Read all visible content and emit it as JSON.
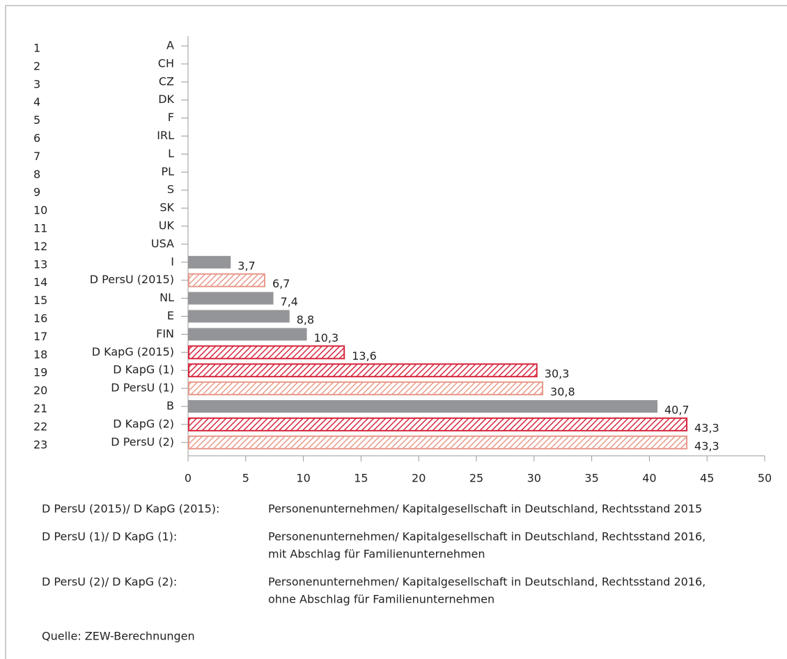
{
  "chart_data": {
    "type": "bar",
    "orientation": "horizontal",
    "ranks": [
      "1",
      "2",
      "3",
      "4",
      "5",
      "6",
      "7",
      "8",
      "9",
      "10",
      "11",
      "12",
      "13",
      "14",
      "15",
      "16",
      "17",
      "18",
      "19",
      "20",
      "21",
      "22",
      "23"
    ],
    "categories": [
      "A",
      "CH",
      "CZ",
      "DK",
      "F",
      "IRL",
      "L",
      "PL",
      "S",
      "SK",
      "UK",
      "USA",
      "I",
      "D PersU (2015)",
      "NL",
      "E",
      "FIN",
      "D KapG (2015)",
      "D KapG (1)",
      "D PersU (1)",
      "B",
      "D KapG (2)",
      "D PersU (2)"
    ],
    "values": [
      0,
      0,
      0,
      0,
      0,
      0,
      0,
      0,
      0,
      0,
      0,
      0,
      3.7,
      6.7,
      7.4,
      8.8,
      10.3,
      13.6,
      30.3,
      30.8,
      40.7,
      43.3,
      43.3
    ],
    "value_labels": [
      null,
      null,
      null,
      null,
      null,
      null,
      null,
      null,
      null,
      null,
      null,
      null,
      "3,7",
      "6,7",
      "7,4",
      "8,8",
      "10,3",
      "13,6",
      "30,3",
      "30,8",
      "40,7",
      "43,3",
      "43,3"
    ],
    "colors": [
      "#939598",
      "#939598",
      "#939598",
      "#939598",
      "#939598",
      "#939598",
      "#939598",
      "#939598",
      "#939598",
      "#939598",
      "#939598",
      "#939598",
      "#939598",
      "#e8998a",
      "#939598",
      "#939598",
      "#939598",
      "#d7263d",
      "#d7263d",
      "#e8998a",
      "#939598",
      "#d7263d",
      "#e8998a"
    ],
    "hatched": [
      false,
      false,
      false,
      false,
      false,
      false,
      false,
      false,
      false,
      false,
      false,
      false,
      false,
      true,
      false,
      false,
      false,
      true,
      true,
      true,
      false,
      true,
      true
    ],
    "xlim": [
      0,
      50
    ],
    "xticks": [
      0,
      5,
      10,
      15,
      20,
      25,
      30,
      35,
      40,
      45,
      50
    ]
  },
  "notes": [
    {
      "label": "D PersU (2015)/ D KapG (2015):",
      "lines": [
        "Personenunternehmen/ Kapitalgesellschaft in Deutschland, Rechtsstand 2015"
      ]
    },
    {
      "label": "D PersU (1)/ D KapG (1):",
      "lines": [
        "Personenunternehmen/ Kapitalgesellschaft in Deutschland, Rechtsstand 2016,",
        "mit Abschlag für Familienunternehmen"
      ]
    },
    {
      "label": "D PersU (2)/ D KapG (2):",
      "lines": [
        "Personenunternehmen/ Kapitalgesellschaft in Deutschland, Rechtsstand 2016,",
        "ohne Abschlag für Familienunternehmen"
      ]
    }
  ],
  "source": "Quelle: ZEW-Berechnungen"
}
